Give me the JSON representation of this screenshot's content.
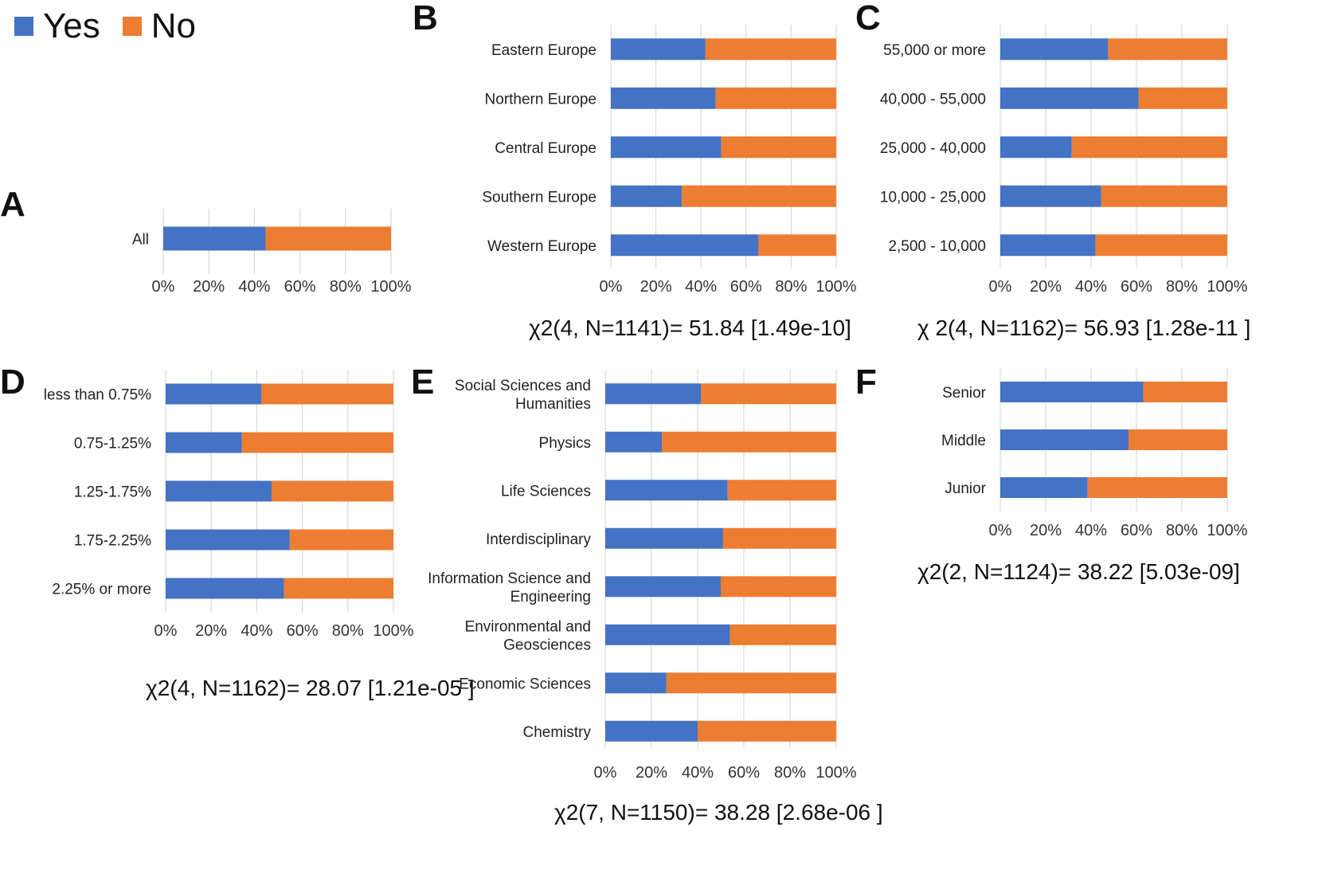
{
  "legend": {
    "items": [
      {
        "label": "Yes",
        "color": "#4472C4"
      },
      {
        "label": "No",
        "color": "#ED7D31"
      }
    ]
  },
  "chart_data": [
    {
      "panel": "A",
      "type": "bar",
      "orientation": "horizontal",
      "stacked": "percent",
      "categories": [
        "All"
      ],
      "series": [
        {
          "name": "Yes",
          "values": [
            45
          ]
        },
        {
          "name": "No",
          "values": [
            55
          ]
        }
      ],
      "xlim": [
        0,
        100
      ],
      "xticks": [
        "0%",
        "20%",
        "40%",
        "60%",
        "80%",
        "100%"
      ],
      "grid": true,
      "stat": ""
    },
    {
      "panel": "B",
      "type": "bar",
      "orientation": "horizontal",
      "stacked": "percent",
      "categories": [
        "Eastern Europe",
        "Northern Europe",
        "Central Europe",
        "Southern Europe",
        "Western Europe"
      ],
      "series": [
        {
          "name": "Yes",
          "values": [
            42,
            46.5,
            49,
            31.5,
            65.5
          ]
        },
        {
          "name": "No",
          "values": [
            58,
            53.5,
            51,
            68.5,
            34.5
          ]
        }
      ],
      "xlim": [
        0,
        100
      ],
      "xticks": [
        "0%",
        "20%",
        "40%",
        "60%",
        "80%",
        "100%"
      ],
      "grid": true,
      "stat": "χ2(4, N=1141)= 51.84 [1.49e-10]"
    },
    {
      "panel": "C",
      "type": "bar",
      "orientation": "horizontal",
      "stacked": "percent",
      "categories": [
        "55,000 or more",
        "40,000 - 55,000",
        "25,000 - 40,000",
        "10,000 - 25,000",
        "2,500 - 10,000"
      ],
      "series": [
        {
          "name": "Yes",
          "values": [
            47.5,
            61,
            31.5,
            44.5,
            42
          ]
        },
        {
          "name": "No",
          "values": [
            52.5,
            39,
            68.5,
            55.5,
            58
          ]
        }
      ],
      "xlim": [
        0,
        100
      ],
      "xticks": [
        "0%",
        "20%",
        "40%",
        "60%",
        "80%",
        "100%"
      ],
      "grid": true,
      "stat": "χ 2(4, N=1162)= 56.93 [1.28e-11 ]"
    },
    {
      "panel": "D",
      "type": "bar",
      "orientation": "horizontal",
      "stacked": "percent",
      "categories": [
        "less than 0.75%",
        "0.75-1.25%",
        "1.25-1.75%",
        "1.75-2.25%",
        "2.25% or more"
      ],
      "series": [
        {
          "name": "Yes",
          "values": [
            42,
            33.5,
            46.5,
            54.5,
            52
          ]
        },
        {
          "name": "No",
          "values": [
            58,
            66.5,
            53.5,
            45.5,
            48
          ]
        }
      ],
      "xlim": [
        0,
        100
      ],
      "xticks": [
        "0%",
        "20%",
        "40%",
        "60%",
        "80%",
        "100%"
      ],
      "grid": true,
      "stat": "χ2(4, N=1162)= 28.07 [1.21e-05 ]"
    },
    {
      "panel": "E",
      "type": "bar",
      "orientation": "horizontal",
      "stacked": "percent",
      "categories": [
        [
          "Social Sciences and",
          "Humanities"
        ],
        [
          "Physics"
        ],
        [
          "Life Sciences"
        ],
        [
          "Interdisciplinary"
        ],
        [
          "Information Science and",
          "Engineering"
        ],
        [
          "Environmental and",
          "Geosciences"
        ],
        [
          "Economic Sciences"
        ],
        [
          "Chemistry"
        ]
      ],
      "series": [
        {
          "name": "Yes",
          "values": [
            41.5,
            24.5,
            53,
            51,
            50,
            54,
            26.5,
            40
          ]
        },
        {
          "name": "No",
          "values": [
            58.5,
            75.5,
            47,
            49,
            50,
            46,
            73.5,
            60
          ]
        }
      ],
      "xlim": [
        0,
        100
      ],
      "xticks": [
        "0%",
        "20%",
        "40%",
        "60%",
        "80%",
        "100%"
      ],
      "grid": true,
      "stat": "χ2(7, N=1150)= 38.28 [2.68e-06 ]"
    },
    {
      "panel": "F",
      "type": "bar",
      "orientation": "horizontal",
      "stacked": "percent",
      "categories": [
        "Senior",
        "Middle",
        "Junior"
      ],
      "series": [
        {
          "name": "Yes",
          "values": [
            63,
            56.5,
            38.5
          ]
        },
        {
          "name": "No",
          "values": [
            37,
            43.5,
            61.5
          ]
        }
      ],
      "xlim": [
        0,
        100
      ],
      "xticks": [
        "0%",
        "20%",
        "40%",
        "60%",
        "80%",
        "100%"
      ],
      "grid": true,
      "stat": "χ2(2, N=1124)= 38.22 [5.03e-09]"
    }
  ]
}
